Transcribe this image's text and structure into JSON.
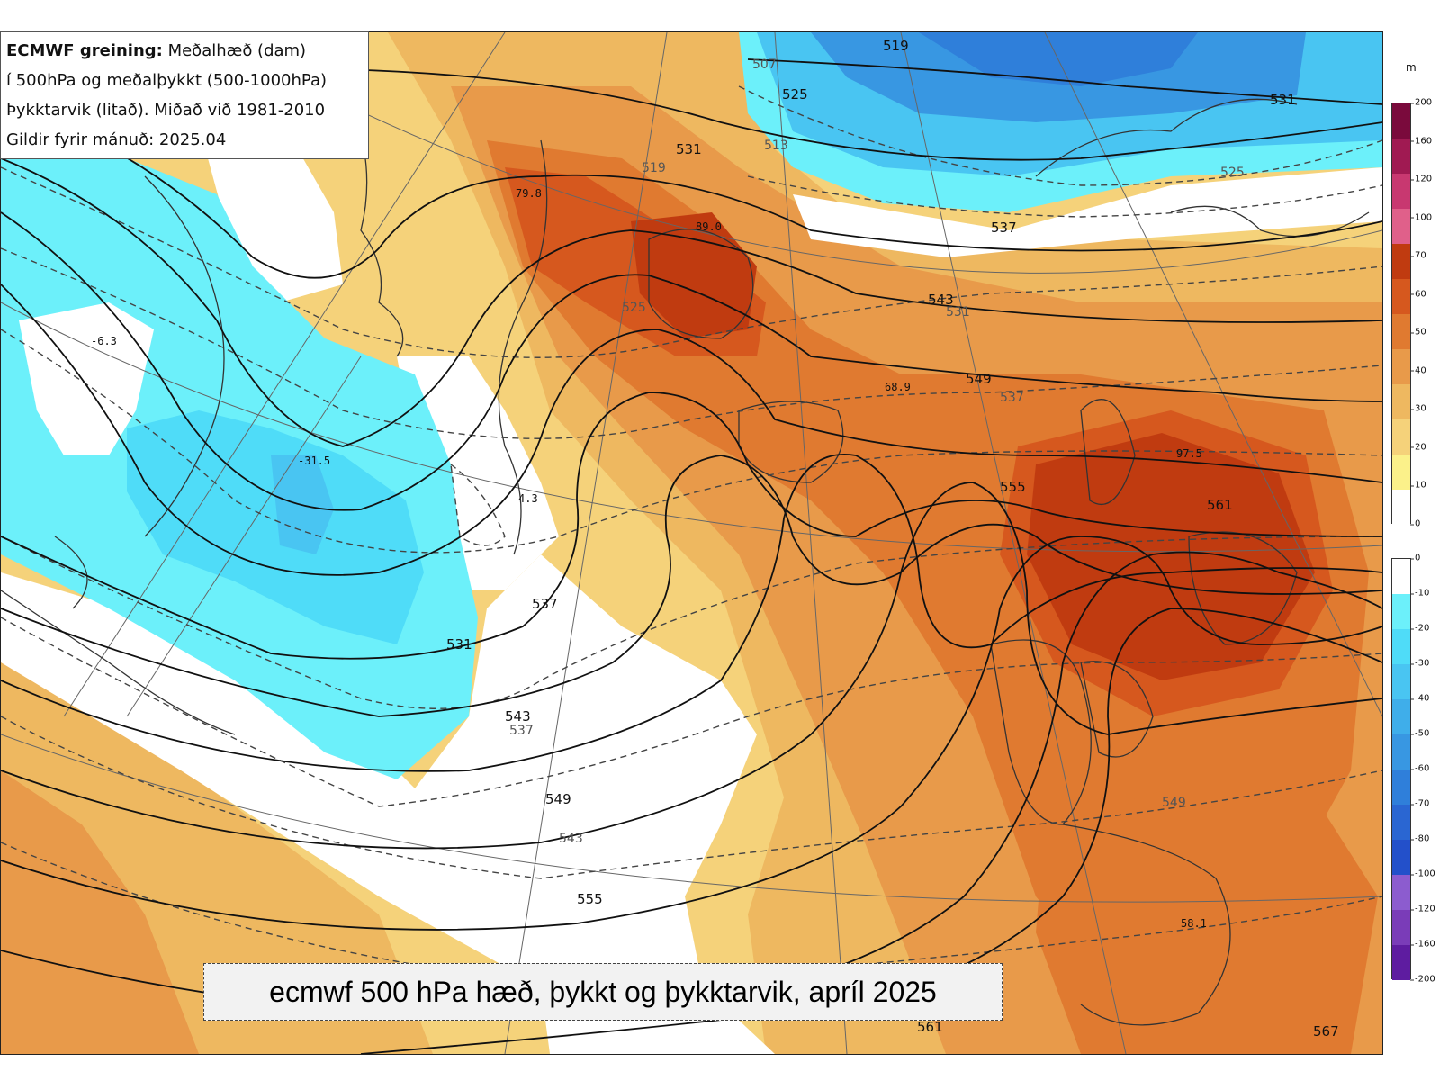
{
  "info_box": {
    "line1_bold": "ECMWF greining:",
    "line1_rest": " Meðalhæð (dam)",
    "line2": "í 500hPa og meðalþykkt (500-1000hPa)",
    "line3": "Þykktarvik (litað). Miðað við 1981-2010",
    "line4": "Gildir fyrir mánuð: 2025.04"
  },
  "caption": "ecmwf 500 hPa hæð, þykkt og þykktarvik, apríl 2025",
  "colorbar": {
    "unit": "m",
    "positive_ticks": [
      "200",
      "160",
      "120",
      "100",
      "70",
      "60",
      "50",
      "40",
      "30",
      "20",
      "10",
      "0"
    ],
    "positive_colors": [
      "#7a0a3c",
      "#a01a52",
      "#c83870",
      "#e0608a",
      "#c03b10",
      "#d6581e",
      "#e07a30",
      "#e89a4a",
      "#eeb860",
      "#f5d27a",
      "#fbf18a",
      "#ffffff"
    ],
    "negative_ticks": [
      "0",
      "-10",
      "-20",
      "-30",
      "-40",
      "-50",
      "-60",
      "-70",
      "-80",
      "-100",
      "-120",
      "-160",
      "-200"
    ],
    "negative_colors": [
      "#ffffff",
      "#6cf0fa",
      "#4fdcf8",
      "#49c5f2",
      "#3faeea",
      "#3897e2",
      "#2f7fda",
      "#2a66d2",
      "#2350ca",
      "#8c5ccf",
      "#7a3cb8",
      "#5e1ca0"
    ]
  },
  "height_labels": {
    "h519": "519",
    "h525a": "525",
    "h531a": "531",
    "h531b": "531",
    "h537a": "537",
    "h537b": "537",
    "h543a": "543",
    "h543b": "543",
    "h549a": "549",
    "h549b": "549",
    "h555a": "555",
    "h555b": "555",
    "h561": "561",
    "h561b": "561",
    "h567": "567"
  },
  "thickness_labels": {
    "t507": "507",
    "t513": "513",
    "t519": "519",
    "t525a": "525",
    "t525b": "525",
    "t531a": "531",
    "t537a": "537",
    "t537b": "537",
    "t543": "543",
    "t549": "549"
  },
  "anomaly_values": {
    "v1": "79.8",
    "v2": "89.0",
    "v3": "-6.3",
    "v4": "-31.5",
    "v5": "4.3",
    "v6": "68.9",
    "v7": "97.5",
    "v8": "58.1"
  }
}
